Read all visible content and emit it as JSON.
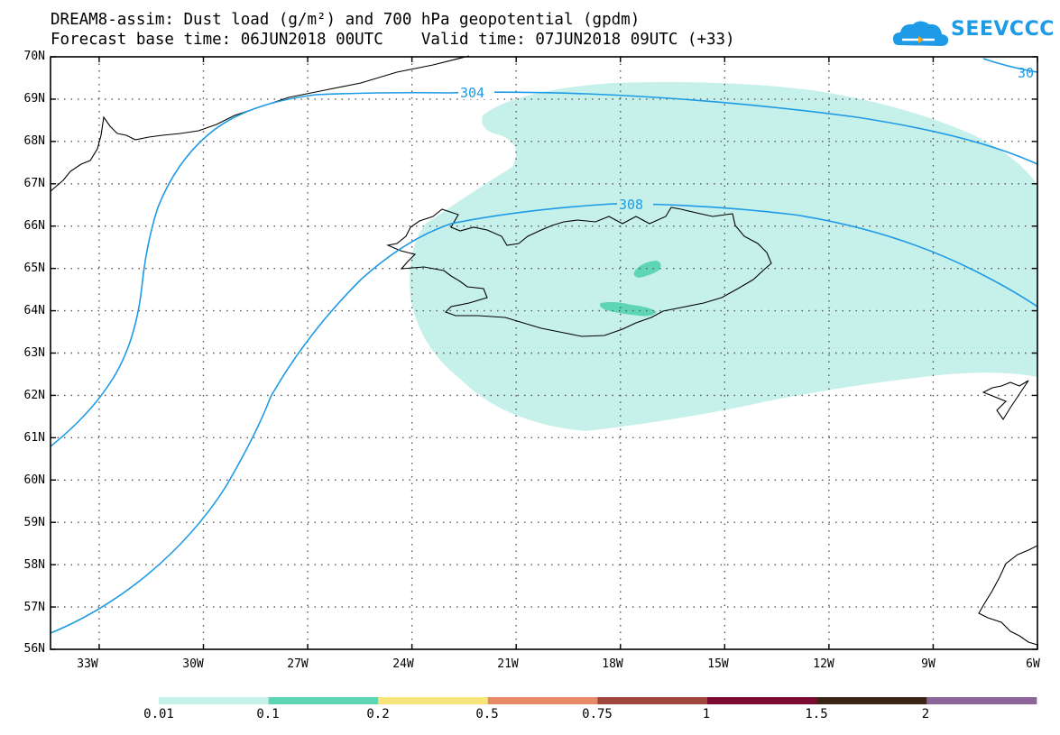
{
  "header": {
    "title_line1": "DREAM8-assim: Dust load (g/m²) and 700 hPa geopotential (gpdm)",
    "title_line2": "Forecast base time: 06JUN2018 00UTC    Valid time: 07JUN2018 09UTC (+33)",
    "logo_text": "SEEVCCC"
  },
  "axes": {
    "lat_labels": [
      "70N",
      "69N",
      "68N",
      "67N",
      "66N",
      "65N",
      "64N",
      "63N",
      "62N",
      "61N",
      "60N",
      "59N",
      "58N",
      "57N",
      "56N"
    ],
    "lon_labels": [
      "33W",
      "30W",
      "27W",
      "24W",
      "21W",
      "18W",
      "15W",
      "12W",
      "9W",
      "6W"
    ],
    "lat_range": [
      56,
      70
    ],
    "lon_range": [
      -34.4,
      -6
    ],
    "grid": "dotted"
  },
  "contours": {
    "unit": "gpdm",
    "labels": [
      "304",
      "308",
      "30"
    ],
    "color": "#1e9be6"
  },
  "colorbar": {
    "labels": [
      "0.01",
      "0.1",
      "0.2",
      "0.5",
      "0.75",
      "1",
      "1.5",
      "2"
    ],
    "colors": [
      "#c6f0ea",
      "#5ed6b4",
      "#f7e57c",
      "#e88a66",
      "#a0463f",
      "#7a0a2e",
      "#3a2416",
      "#8c6699"
    ]
  },
  "dust_fill_colors": {
    "low": "#c6f0ea",
    "mid": "#5ed6b4"
  }
}
